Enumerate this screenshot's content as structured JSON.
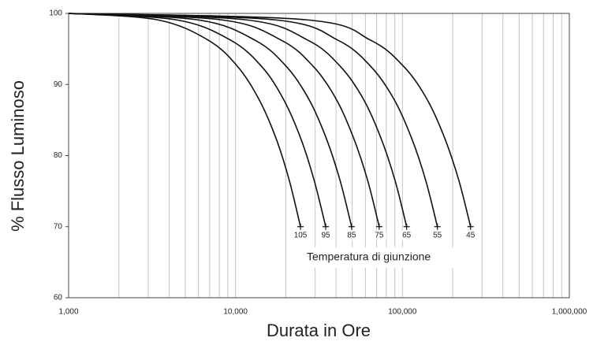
{
  "chart_data": {
    "type": "line",
    "xlabel": "Durata in Ore",
    "ylabel": "% Flusso Luminoso",
    "annotation": "Temperatura di giunzione",
    "xscale": "log",
    "xlim": [
      1000,
      1000000
    ],
    "xticks": [
      {
        "value": 1000,
        "label": "1,000"
      },
      {
        "value": 10000,
        "label": "10,000"
      },
      {
        "value": 100000,
        "label": "100,000"
      },
      {
        "value": 1000000,
        "label": "1,000,000"
      }
    ],
    "x_minor_ticks": [
      2000,
      3000,
      4000,
      5000,
      6000,
      7000,
      8000,
      9000,
      20000,
      30000,
      40000,
      50000,
      60000,
      70000,
      80000,
      90000,
      200000,
      300000,
      400000,
      500000,
      600000,
      700000,
      800000,
      900000
    ],
    "ylim": [
      60,
      100
    ],
    "yticks": [
      60,
      70,
      80,
      90,
      100
    ],
    "grid": true,
    "series": [
      {
        "name": "105",
        "color": "#111111",
        "x": [
          1000,
          3400,
          6900,
          10400,
          13900,
          17500,
          21000,
          24500
        ],
        "values": [
          100,
          99.1,
          96.2,
          92.4,
          87.8,
          82.4,
          76.5,
          70
        ]
      },
      {
        "name": "95",
        "color": "#111111",
        "x": [
          1000,
          4400,
          9400,
          14500,
          19500,
          24600,
          29600,
          34700
        ],
        "values": [
          100,
          99.1,
          96.2,
          92.4,
          87.8,
          82.4,
          76.5,
          70
        ]
      },
      {
        "name": "85",
        "color": "#111111",
        "x": [
          1000,
          5900,
          13150,
          20400,
          27700,
          35000,
          42300,
          49600
        ],
        "values": [
          100,
          99.1,
          96.2,
          92.4,
          87.8,
          82.4,
          76.5,
          70
        ]
      },
      {
        "name": "75",
        "color": "#111111",
        "x": [
          1000,
          8200,
          18900,
          29600,
          40400,
          51100,
          61900,
          72600
        ],
        "values": [
          100,
          99.1,
          96.2,
          92.4,
          87.8,
          82.4,
          76.5,
          70
        ]
      },
      {
        "name": "65",
        "color": "#111111",
        "x": [
          1000,
          11500,
          27300,
          43000,
          58800,
          74500,
          90300,
          106000
        ],
        "values": [
          100,
          99.1,
          96.2,
          92.4,
          87.8,
          82.4,
          76.5,
          70
        ]
      },
      {
        "name": "55",
        "color": "#111111",
        "x": [
          1000,
          17100,
          41300,
          65400,
          89600,
          113700,
          137900,
          162000
        ],
        "values": [
          100,
          99.1,
          96.2,
          92.4,
          87.8,
          82.4,
          76.5,
          70
        ]
      },
      {
        "name": "45",
        "color": "#111111",
        "x": [
          1000,
          26500,
          64800,
          103000,
          141300,
          179500,
          217800,
          256000
        ],
        "values": [
          100,
          99.1,
          96.2,
          92.4,
          87.8,
          82.4,
          76.5,
          70
        ]
      }
    ]
  }
}
